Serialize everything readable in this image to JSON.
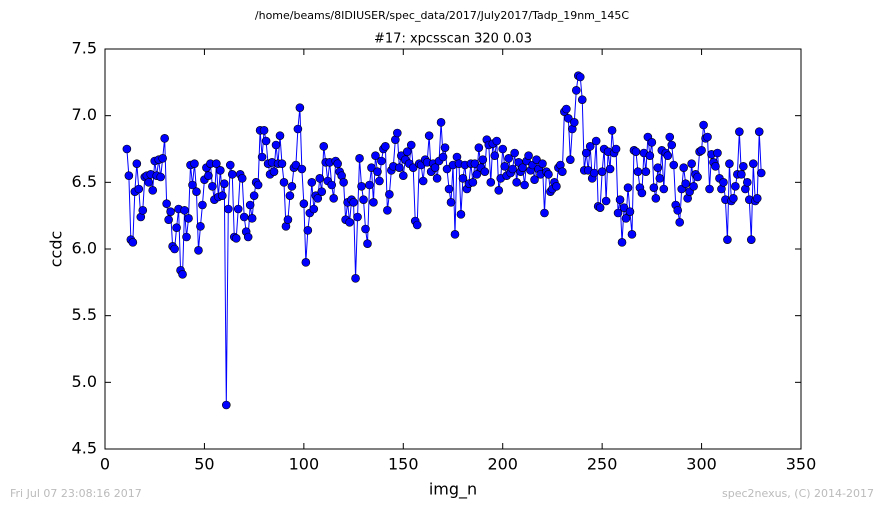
{
  "chart_data": {
    "type": "line",
    "suptitle": "/home/beams/8IDIUSER/spec_data/2017/July2017/Tadp_19nm_145C",
    "title": "#17: xpcsscan 320 0.03",
    "xlabel": "img_n",
    "ylabel": "ccdc",
    "footer_left": "Fri Jul 07 23:08:16 2017",
    "footer_right": "spec2nexus, (C) 2014-2017",
    "xlim": [
      0,
      350
    ],
    "xticks": [
      0,
      50,
      100,
      150,
      200,
      250,
      300,
      350
    ],
    "ylim": [
      4.5,
      7.5
    ],
    "yticks": [
      4.5,
      {
        "value": 5,
        "label": "5.0"
      },
      5.5,
      {
        "value": 6,
        "label": "6.0"
      },
      6.5,
      {
        "value": 7,
        "label": "7.0"
      },
      7.5
    ],
    "grid": false,
    "x": [
      11,
      12,
      13,
      14,
      15,
      16,
      17,
      18,
      19,
      20,
      21,
      22,
      23,
      24,
      25,
      26,
      27,
      28,
      29,
      30,
      31,
      32,
      33,
      34,
      35,
      36,
      37,
      38,
      39,
      40,
      41,
      42,
      43,
      44,
      45,
      46,
      47,
      48,
      49,
      50,
      51,
      52,
      53,
      54,
      55,
      56,
      57,
      58,
      59,
      60,
      61,
      62,
      63,
      64,
      65,
      66,
      67,
      68,
      69,
      70,
      71,
      72,
      73,
      74,
      75,
      76,
      77,
      78,
      79,
      80,
      81,
      82,
      83,
      84,
      85,
      86,
      87,
      88,
      89,
      90,
      91,
      92,
      93,
      94,
      95,
      96,
      97,
      98,
      99,
      100,
      101,
      102,
      103,
      104,
      105,
      106,
      107,
      108,
      109,
      110,
      111,
      112,
      113,
      114,
      115,
      116,
      117,
      118,
      119,
      120,
      121,
      122,
      123,
      124,
      125,
      126,
      127,
      128,
      129,
      130,
      131,
      132,
      133,
      134,
      135,
      136,
      137,
      138,
      139,
      140,
      141,
      142,
      143,
      144,
      145,
      146,
      147,
      148,
      149,
      150,
      151,
      152,
      153,
      154,
      155,
      156,
      157,
      158,
      159,
      160,
      161,
      162,
      163,
      164,
      165,
      166,
      167,
      168,
      169,
      170,
      171,
      172,
      173,
      174,
      175,
      176,
      177,
      178,
      179,
      180,
      181,
      182,
      183,
      184,
      185,
      186,
      187,
      188,
      189,
      190,
      191,
      192,
      193,
      194,
      195,
      196,
      197,
      198,
      199,
      200,
      201,
      202,
      203,
      204,
      205,
      206,
      207,
      208,
      209,
      210,
      211,
      212,
      213,
      214,
      215,
      216,
      217,
      218,
      219,
      220,
      221,
      222,
      223,
      224,
      225,
      226,
      227,
      228,
      229,
      230,
      231,
      232,
      233,
      234,
      235,
      236,
      237,
      238,
      239,
      240,
      241,
      242,
      243,
      244,
      245,
      246,
      247,
      248,
      249,
      250,
      251,
      252,
      253,
      254,
      255,
      256,
      257,
      258,
      259,
      260,
      261,
      262,
      263,
      264,
      265,
      266,
      267,
      268,
      269,
      270,
      271,
      272,
      273,
      274,
      275,
      276,
      277,
      278,
      279,
      280,
      281,
      282,
      283,
      284,
      285,
      286,
      287,
      288,
      289,
      290,
      291,
      292,
      293,
      294,
      295,
      296,
      297,
      298,
      299,
      300,
      301,
      302,
      303,
      304,
      305,
      306,
      307,
      308,
      309,
      310,
      311,
      312,
      313,
      314,
      315,
      316,
      317,
      318,
      319,
      320,
      321,
      322,
      323,
      324,
      325,
      326,
      327,
      328,
      329,
      330
    ],
    "series": [
      {
        "color": "#0000ff",
        "marker_color": "#0000ff",
        "values": [
          6.75,
          6.55,
          6.07,
          6.05,
          6.43,
          6.64,
          6.45,
          6.24,
          6.29,
          6.54,
          6.55,
          6.5,
          6.56,
          6.44,
          6.66,
          6.55,
          6.67,
          6.54,
          6.68,
          6.83,
          6.34,
          6.22,
          6.28,
          6.02,
          6.0,
          6.16,
          6.3,
          5.84,
          5.81,
          6.29,
          6.09,
          6.23,
          6.63,
          6.48,
          6.64,
          6.43,
          5.99,
          6.17,
          6.33,
          6.52,
          6.61,
          6.55,
          6.64,
          6.47,
          6.37,
          6.64,
          6.39,
          6.59,
          6.4,
          6.49,
          4.83,
          6.3,
          6.63,
          6.56,
          6.09,
          6.08,
          6.3,
          6.56,
          6.53,
          6.24,
          6.13,
          6.09,
          6.33,
          6.23,
          6.4,
          6.5,
          6.48,
          6.89,
          6.69,
          6.89,
          6.81,
          6.64,
          6.56,
          6.65,
          6.58,
          6.78,
          6.64,
          6.85,
          6.64,
          6.5,
          6.17,
          6.22,
          6.4,
          6.47,
          6.61,
          6.63,
          6.9,
          7.06,
          6.6,
          6.34,
          5.9,
          6.14,
          6.27,
          6.5,
          6.3,
          6.4,
          6.38,
          6.53,
          6.43,
          6.77,
          6.65,
          6.51,
          6.65,
          6.48,
          6.38,
          6.66,
          6.64,
          6.58,
          6.55,
          6.5,
          6.22,
          6.35,
          6.2,
          6.37,
          6.35,
          5.78,
          6.24,
          6.68,
          6.47,
          6.37,
          6.15,
          6.04,
          6.48,
          6.61,
          6.35,
          6.7,
          6.58,
          6.51,
          6.66,
          6.75,
          6.77,
          6.29,
          6.41,
          6.59,
          6.62,
          6.82,
          6.87,
          6.61,
          6.7,
          6.55,
          6.67,
          6.73,
          6.64,
          6.78,
          6.61,
          6.21,
          6.18,
          6.64,
          6.63,
          6.51,
          6.67,
          6.65,
          6.85,
          6.58,
          6.64,
          6.61,
          6.53,
          6.66,
          6.95,
          6.69,
          6.76,
          6.6,
          6.45,
          6.35,
          6.63,
          6.11,
          6.69,
          6.64,
          6.26,
          6.53,
          6.63,
          6.45,
          6.49,
          6.64,
          6.5,
          6.64,
          6.56,
          6.76,
          6.61,
          6.67,
          6.58,
          6.82,
          6.78,
          6.5,
          6.79,
          6.7,
          6.81,
          6.44,
          6.53,
          6.75,
          6.62,
          6.55,
          6.68,
          6.57,
          6.6,
          6.72,
          6.5,
          6.65,
          6.58,
          6.61,
          6.48,
          6.66,
          6.7,
          6.59,
          6.63,
          6.52,
          6.67,
          6.6,
          6.56,
          6.64,
          6.27,
          6.58,
          6.56,
          6.43,
          6.45,
          6.5,
          6.47,
          6.61,
          6.63,
          6.58,
          7.03,
          7.05,
          6.98,
          6.67,
          6.9,
          6.95,
          7.19,
          7.3,
          7.29,
          7.12,
          6.59,
          6.72,
          6.59,
          6.77,
          6.53,
          6.57,
          6.81,
          6.32,
          6.31,
          6.58,
          6.75,
          6.36,
          6.73,
          6.6,
          6.89,
          6.72,
          6.75,
          6.27,
          6.37,
          6.05,
          6.31,
          6.23,
          6.46,
          6.28,
          6.11,
          6.74,
          6.73,
          6.58,
          6.46,
          6.42,
          6.72,
          6.58,
          6.84,
          6.7,
          6.8,
          6.46,
          6.38,
          6.61,
          6.53,
          6.74,
          6.45,
          6.72,
          6.7,
          6.84,
          6.78,
          6.63,
          6.33,
          6.29,
          6.2,
          6.45,
          6.61,
          6.49,
          6.38,
          6.43,
          6.64,
          6.47,
          6.56,
          6.54,
          6.73,
          6.74,
          6.93,
          6.83,
          6.84,
          6.45,
          6.71,
          6.65,
          6.62,
          6.72,
          6.53,
          6.45,
          6.5,
          6.37,
          6.07,
          6.64,
          6.36,
          6.38,
          6.47,
          6.56,
          6.88,
          6.56,
          6.62,
          6.45,
          6.5,
          6.37,
          6.07,
          6.64,
          6.36,
          6.38,
          6.88,
          6.57
        ]
      }
    ]
  }
}
